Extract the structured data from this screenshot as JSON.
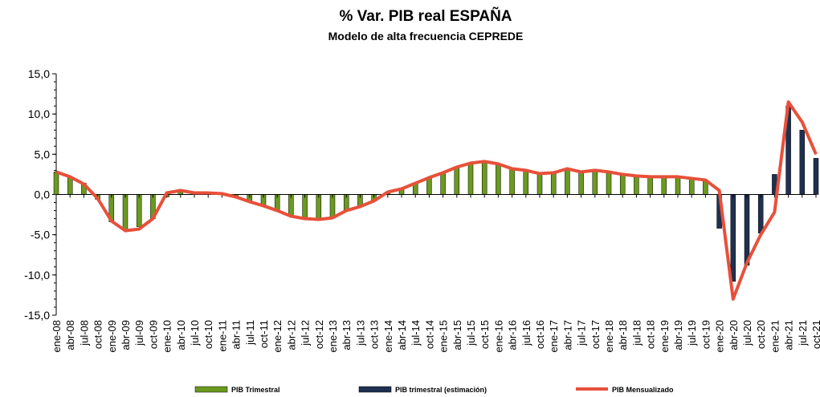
{
  "chart_data": {
    "type": "bar_line",
    "title": "% Var. PIB real ESPAÑA",
    "subtitle": "Modelo de alta frecuencia CEPREDE",
    "categories": [
      "ene-08",
      "abr-08",
      "jul-08",
      "oct-08",
      "ene-09",
      "abr-09",
      "jul-09",
      "oct-09",
      "ene-10",
      "abr-10",
      "jul-10",
      "oct-10",
      "ene-11",
      "abr-11",
      "jul-11",
      "oct-11",
      "ene-12",
      "abr-12",
      "jul-12",
      "oct-12",
      "ene-13",
      "abr-13",
      "jul-13",
      "oct-13",
      "ene-14",
      "abr-14",
      "jul-14",
      "oct-14",
      "ene-15",
      "abr-15",
      "jul-15",
      "oct-15",
      "ene-16",
      "abr-16",
      "jul-16",
      "oct-16",
      "ene-17",
      "abr-17",
      "jul-17",
      "oct-17",
      "ene-18",
      "abr-18",
      "jul-18",
      "oct-18",
      "ene-19",
      "abr-19",
      "jul-19",
      "oct-19",
      "ene-20",
      "abr-20",
      "jul-20",
      "oct-20",
      "ene-21",
      "abr-21",
      "jul-21",
      "oct-21"
    ],
    "series": [
      {
        "name": "PIB Trimestral",
        "kind": "bar",
        "color": "#6b9a1f",
        "values": [
          2.8,
          2.2,
          1.4,
          -0.6,
          -3.4,
          -4.4,
          -4.0,
          -3.0,
          -0.3,
          0.3,
          0.3,
          0.2,
          0.1,
          -0.3,
          -0.9,
          -1.4,
          -2.0,
          -2.7,
          -3.0,
          -3.1,
          -2.9,
          -2.0,
          -1.5,
          -0.8,
          0.3,
          0.7,
          1.4,
          2.1,
          2.7,
          3.4,
          3.9,
          4.1,
          3.8,
          3.2,
          3.0,
          2.6,
          2.7,
          3.2,
          2.8,
          3.0,
          2.8,
          2.5,
          2.3,
          2.2,
          2.2,
          2.2,
          2.0,
          1.8,
          null,
          null,
          null,
          null,
          null,
          null,
          null,
          null
        ]
      },
      {
        "name": "PIB trimestral (estimación)",
        "kind": "bar",
        "color": "#1f3050",
        "values": [
          null,
          null,
          null,
          null,
          null,
          null,
          null,
          null,
          null,
          null,
          null,
          null,
          null,
          null,
          null,
          null,
          null,
          null,
          null,
          null,
          null,
          null,
          null,
          null,
          null,
          null,
          null,
          null,
          null,
          null,
          null,
          null,
          null,
          null,
          null,
          null,
          null,
          null,
          null,
          null,
          null,
          null,
          null,
          null,
          null,
          null,
          null,
          null,
          -4.2,
          -10.8,
          -8.8,
          -4.8,
          2.5,
          11.0,
          8.0,
          4.5
        ]
      },
      {
        "name": "PIB Mensualizado",
        "kind": "line",
        "color": "#e8503a",
        "values": [
          2.8,
          2.2,
          1.3,
          -0.5,
          -3.3,
          -4.5,
          -4.3,
          -3.0,
          0.2,
          0.5,
          0.2,
          0.2,
          0.1,
          -0.3,
          -0.9,
          -1.4,
          -2.0,
          -2.7,
          -3.0,
          -3.1,
          -2.9,
          -2.0,
          -1.5,
          -0.8,
          0.3,
          0.7,
          1.4,
          2.1,
          2.7,
          3.4,
          3.9,
          4.1,
          3.8,
          3.2,
          3.0,
          2.6,
          2.7,
          3.2,
          2.8,
          3.0,
          2.8,
          2.5,
          2.3,
          2.2,
          2.2,
          2.2,
          2.0,
          1.8,
          0.5,
          -13.0,
          -8.5,
          -5.0,
          -2.2,
          11.5,
          9.0,
          5.0
        ]
      }
    ],
    "ylim": [
      -15,
      15
    ],
    "yticks": [
      {
        "value": -15,
        "label": "-15,0"
      },
      {
        "value": -10,
        "label": "-10,0"
      },
      {
        "value": -5,
        "label": "-5,0"
      },
      {
        "value": 0,
        "label": "0,0"
      },
      {
        "value": 5,
        "label": "5,0"
      },
      {
        "value": 10,
        "label": "10,0"
      },
      {
        "value": 15,
        "label": "15,0"
      }
    ],
    "legend": "bottom"
  }
}
